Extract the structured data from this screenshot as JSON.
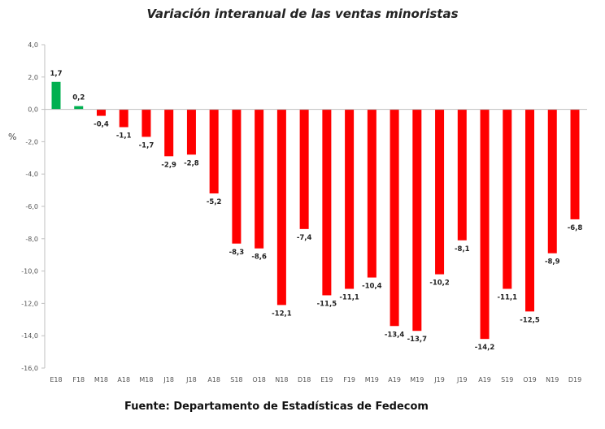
{
  "chart_data": {
    "type": "bar",
    "title": "Variación interanual de las ventas minoristas",
    "xlabel": "",
    "ylabel": "%",
    "ylim": [
      -16,
      4
    ],
    "yticks": [
      "4,0",
      "2,0",
      "0,0",
      "-2,0",
      "-4,0",
      "-6,0",
      "-8,0",
      "-10,0",
      "-12,0",
      "-14,0",
      "-16,0"
    ],
    "ytick_values": [
      4,
      2,
      0,
      -2,
      -4,
      -6,
      -8,
      -10,
      -12,
      -14,
      -16
    ],
    "grid": false,
    "categories": [
      "E18",
      "F18",
      "M18",
      "A18",
      "M18",
      "J18",
      "J18",
      "A18",
      "S18",
      "O18",
      "N18",
      "D18",
      "E19",
      "F19",
      "M19",
      "A19",
      "M19",
      "J19",
      "J19",
      "A19",
      "S19",
      "O19",
      "N19",
      "D19"
    ],
    "values": [
      1.7,
      0.2,
      -0.4,
      -1.1,
      -1.7,
      -2.9,
      -2.8,
      -5.2,
      -8.3,
      -8.6,
      -12.1,
      -7.4,
      -11.5,
      -11.1,
      -10.4,
      -13.4,
      -13.7,
      -10.2,
      -8.1,
      -14.2,
      -11.1,
      -12.5,
      -8.9,
      -6.8
    ],
    "labels": [
      "1,7",
      "0,2",
      "-0,4",
      "-1,1",
      "-1,7",
      "-2,9",
      "-2,8",
      "-5,2",
      "-8,3",
      "-8,6",
      "-12,1",
      "-7,4",
      "-11,5",
      "-11,1",
      "-10,4",
      "-13,4",
      "-13,7",
      "-10,2",
      "-8,1",
      "-14,2",
      "-11,1",
      "-12,5",
      "-8,9",
      "-6,8"
    ],
    "colors": {
      "positive": "#00b050",
      "negative": "#ff0000",
      "axis": "#bfbfbf"
    },
    "source": "Fuente: Departamento de Estadísticas de Fedecom"
  }
}
